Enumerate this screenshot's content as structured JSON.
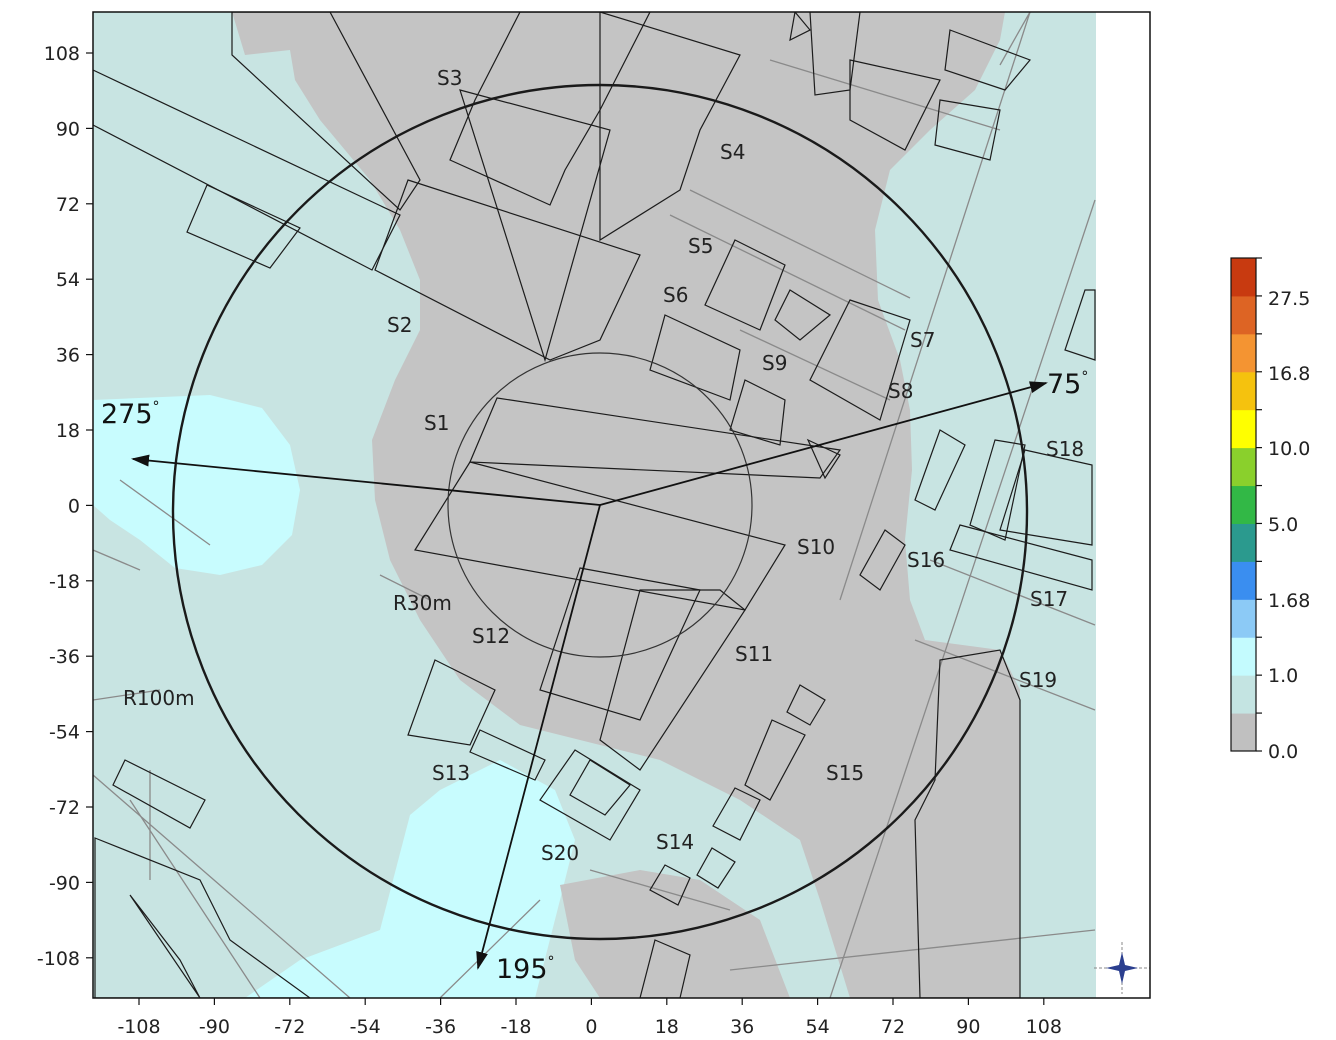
{
  "map": {
    "x_ticks": [
      "-108",
      "-90",
      "-72",
      "-54",
      "-36",
      "-18",
      "0",
      "18",
      "36",
      "54",
      "72",
      "90",
      "108"
    ],
    "y_ticks": [
      "108",
      "90",
      "72",
      "54",
      "36",
      "18",
      "0",
      "-18",
      "-36",
      "-54",
      "-72",
      "-90",
      "-108"
    ],
    "sites": [
      {
        "id": "s1",
        "label": "S1"
      },
      {
        "id": "s2",
        "label": "S2"
      },
      {
        "id": "s3",
        "label": "S3"
      },
      {
        "id": "s4",
        "label": "S4"
      },
      {
        "id": "s5",
        "label": "S5"
      },
      {
        "id": "s6",
        "label": "S6"
      },
      {
        "id": "s7",
        "label": "S7"
      },
      {
        "id": "s8",
        "label": "S8"
      },
      {
        "id": "s9",
        "label": "S9"
      },
      {
        "id": "s10",
        "label": "S10"
      },
      {
        "id": "s11",
        "label": "S11"
      },
      {
        "id": "s12",
        "label": "S12"
      },
      {
        "id": "s13",
        "label": "S13"
      },
      {
        "id": "s14",
        "label": "S14"
      },
      {
        "id": "s15",
        "label": "S15"
      },
      {
        "id": "s16",
        "label": "S16"
      },
      {
        "id": "s17",
        "label": "S17"
      },
      {
        "id": "s18",
        "label": "S18"
      },
      {
        "id": "s19",
        "label": "S19"
      },
      {
        "id": "s20",
        "label": "S20"
      }
    ],
    "directions": [
      {
        "id": "d75",
        "label": "75",
        "unit": "°"
      },
      {
        "id": "d275",
        "label": "275",
        "unit": "°"
      },
      {
        "id": "d195",
        "label": "195",
        "unit": "°"
      }
    ],
    "radii": {
      "outer": "R100m",
      "inner": "R30m"
    }
  },
  "colorbar": {
    "labels": [
      "27.5",
      "16.8",
      "10.0",
      "5.0",
      "1.68",
      "1.0",
      "0.0"
    ],
    "colors": [
      "#c0c0c0",
      "#c4e4e2",
      "#c4fbfe",
      "#8ccaf6",
      "#3a8ef0",
      "#2b9a8e",
      "#32b846",
      "#8ad02c",
      "#ffff00",
      "#f5c20e",
      "#f49432",
      "#dd6424",
      "#c83a10"
    ]
  },
  "colors": {
    "background_zone": "#c8e4e2",
    "building_zone": "#c4c4c4",
    "high_zone": "#c8fcfe"
  }
}
